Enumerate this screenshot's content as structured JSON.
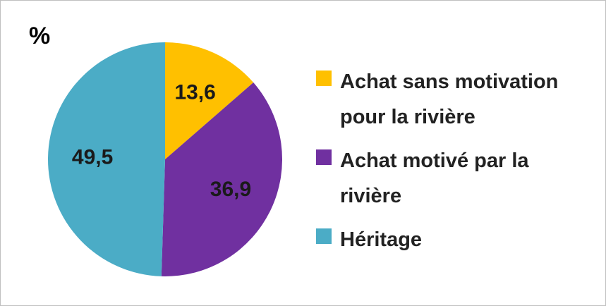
{
  "chart_data": {
    "type": "pie",
    "title": "%",
    "categories": [
      "Achat sans motivation pour la rivière",
      "Achat motivé par la rivière",
      "Héritage"
    ],
    "values": [
      13.6,
      36.9,
      49.5
    ],
    "value_labels": [
      "13,6",
      "36,9",
      "49,5"
    ],
    "colors": [
      "#ffc000",
      "#7030a0",
      "#4bacc6"
    ],
    "legend": "right"
  }
}
